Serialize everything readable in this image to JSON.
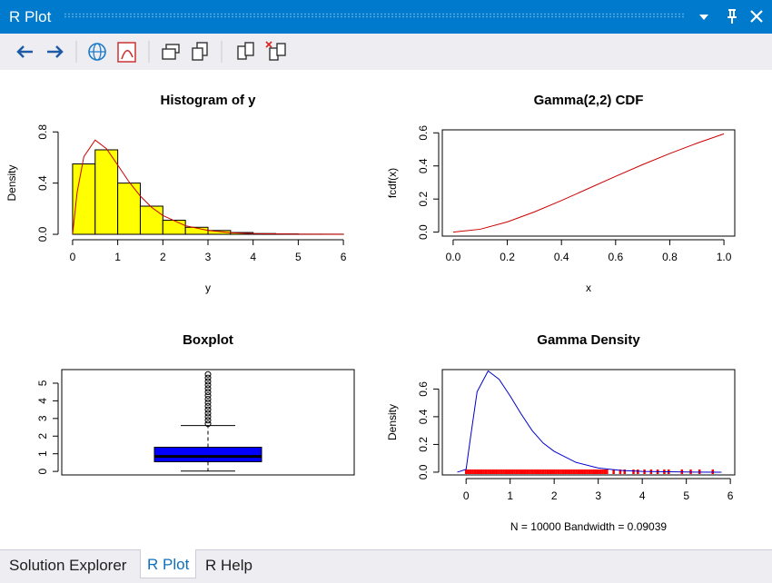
{
  "window": {
    "title": "R Plot"
  },
  "tabs": [
    "Solution Explorer",
    "R Plot",
    "R Help"
  ],
  "chart_data": [
    {
      "type": "histogram",
      "title": "Histogram of y",
      "xlabel": "y",
      "ylabel": "Density",
      "bins": [
        0,
        0.5,
        1,
        1.5,
        2,
        2.5,
        3,
        3.5,
        4,
        4.5,
        5,
        5.5,
        6
      ],
      "values": [
        0.55,
        0.66,
        0.4,
        0.22,
        0.11,
        0.055,
        0.03,
        0.014,
        0.006,
        0.003,
        0.001,
        0.001
      ],
      "color": "#ffff00",
      "curve": {
        "color": "#cc0000",
        "x": [
          0,
          0.1,
          0.25,
          0.5,
          0.75,
          1,
          1.25,
          1.5,
          1.75,
          2,
          2.5,
          3,
          3.5,
          4,
          5,
          6
        ],
        "values": [
          0,
          0.327,
          0.607,
          0.736,
          0.669,
          0.541,
          0.41,
          0.299,
          0.211,
          0.147,
          0.067,
          0.03,
          0.0128,
          0.0054,
          0.0009,
          0.0001
        ]
      },
      "xlim": [
        -0.24,
        6.24
      ],
      "ylim": [
        -0.014,
        0.816
      ],
      "xticks": [
        0,
        1,
        2,
        3,
        4,
        5,
        6
      ],
      "yticks": [
        {
          "value": 0,
          "label": "0.0"
        },
        0.4,
        {
          "value": 0.8,
          "label": "0.8"
        }
      ]
    },
    {
      "type": "line",
      "title": "Gamma(2,2) CDF",
      "xlabel": "x",
      "ylabel": "fcdf(x)",
      "color": "#cc0000",
      "x": [
        0,
        0.1,
        0.2,
        0.3,
        0.4,
        0.5,
        0.6,
        0.7,
        0.8,
        0.9,
        1
      ],
      "values": [
        0,
        0.0175,
        0.0616,
        0.122,
        0.191,
        0.264,
        0.337,
        0.408,
        0.475,
        0.537,
        0.594
      ],
      "xlim": [
        -0.04,
        1.04
      ],
      "ylim": [
        -0.024,
        0.618
      ],
      "xticks": [
        {
          "value": 0,
          "label": "0.0"
        },
        0.2,
        0.4,
        0.6,
        0.8,
        {
          "value": 1,
          "label": "1.0"
        }
      ],
      "yticks": [
        {
          "value": 0,
          "label": "0.0"
        },
        0.2,
        0.4,
        0.6
      ]
    },
    {
      "type": "box",
      "title": "Boxplot",
      "color": "#0000ff",
      "stats": {
        "min": 0.02,
        "q1": 0.55,
        "median": 0.85,
        "q3": 1.37,
        "max": 2.6
      },
      "outliers": [
        2.7,
        2.9,
        3.1,
        3.3,
        3.5,
        3.7,
        3.9,
        4.1,
        4.3,
        4.5,
        4.7,
        4.9,
        5.1,
        5.3,
        5.5
      ],
      "ylim": [
        -0.2,
        5.77
      ],
      "yticks": [
        0,
        1,
        2,
        3,
        4,
        5
      ]
    },
    {
      "type": "line",
      "title": "Gamma Density",
      "xlabel": "N = 10000   Bandwidth = 0.09039",
      "ylabel": "Density",
      "color": "#0000cc",
      "x": [
        -0.2,
        0,
        0.1,
        0.25,
        0.5,
        0.75,
        1,
        1.25,
        1.5,
        1.75,
        2,
        2.5,
        3,
        3.5,
        4,
        5,
        5.8
      ],
      "values": [
        0,
        0.02,
        0.25,
        0.58,
        0.73,
        0.67,
        0.55,
        0.42,
        0.3,
        0.21,
        0.15,
        0.07,
        0.03,
        0.013,
        0.005,
        0.001,
        0
      ],
      "rug_color": "#ff0000",
      "rug": [
        0,
        0.05,
        0.1,
        0.15,
        0.2,
        0.25,
        0.3,
        0.35,
        0.4,
        0.45,
        0.5,
        0.55,
        0.6,
        0.65,
        0.7,
        0.75,
        0.8,
        0.85,
        0.9,
        0.95,
        1,
        1.05,
        1.1,
        1.15,
        1.2,
        1.25,
        1.3,
        1.35,
        1.4,
        1.45,
        1.5,
        1.55,
        1.6,
        1.65,
        1.7,
        1.75,
        1.8,
        1.85,
        1.9,
        1.95,
        2,
        2.05,
        2.1,
        2.15,
        2.2,
        2.25,
        2.3,
        2.35,
        2.4,
        2.45,
        2.5,
        2.55,
        2.6,
        2.65,
        2.7,
        2.75,
        2.8,
        2.85,
        2.9,
        2.95,
        3,
        3.05,
        3.1,
        3.15,
        3.2,
        3.35,
        3.5,
        3.6,
        3.8,
        3.9,
        4.05,
        4.2,
        4.35,
        4.5,
        4.6,
        4.9,
        5.1,
        5.3,
        5.6
      ],
      "xlim": [
        -0.54,
        6.1
      ],
      "ylim": [
        -0.02,
        0.74
      ],
      "xticks": [
        0,
        1,
        2,
        3,
        4,
        5,
        6
      ],
      "yticks": [
        {
          "value": 0,
          "label": "0.0"
        },
        0.2,
        0.4,
        0.6
      ]
    }
  ]
}
